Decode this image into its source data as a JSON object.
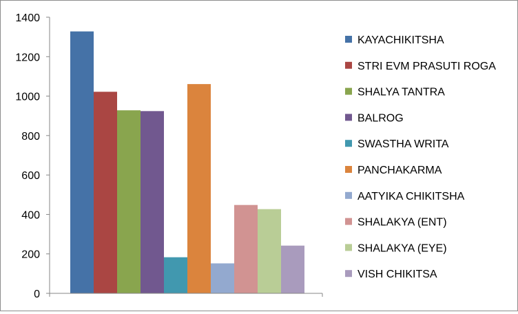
{
  "chart_data": {
    "type": "bar",
    "title": "",
    "xlabel": "",
    "ylabel": "",
    "ylim": [
      0,
      1400
    ],
    "yticks": [
      0,
      200,
      400,
      600,
      800,
      1000,
      1200,
      1400
    ],
    "grid": false,
    "legend_position": "right",
    "series": [
      {
        "name": "KAYACHIKITSHA",
        "value": 1328,
        "color": "#4572A7"
      },
      {
        "name": "STRI EVM PRASUTI ROGA",
        "value": 1022,
        "color": "#AA4643"
      },
      {
        "name": "SHALYA TANTRA",
        "value": 928,
        "color": "#89A54E"
      },
      {
        "name": "BALROG",
        "value": 924,
        "color": "#71588F"
      },
      {
        "name": "SWASTHA WRITA",
        "value": 183,
        "color": "#4198AF"
      },
      {
        "name": "PANCHAKARMA",
        "value": 1061,
        "color": "#DB843D"
      },
      {
        "name": "AATYIKA CHIKITSHA",
        "value": 152,
        "color": "#93A9CF"
      },
      {
        "name": "SHALAKYA (ENT)",
        "value": 448,
        "color": "#D19392"
      },
      {
        "name": "SHALAKYA (EYE)",
        "value": 427,
        "color": "#B9CD96"
      },
      {
        "name": "VISH CHIKITSA",
        "value": 242,
        "color": "#A99BBD"
      }
    ]
  }
}
